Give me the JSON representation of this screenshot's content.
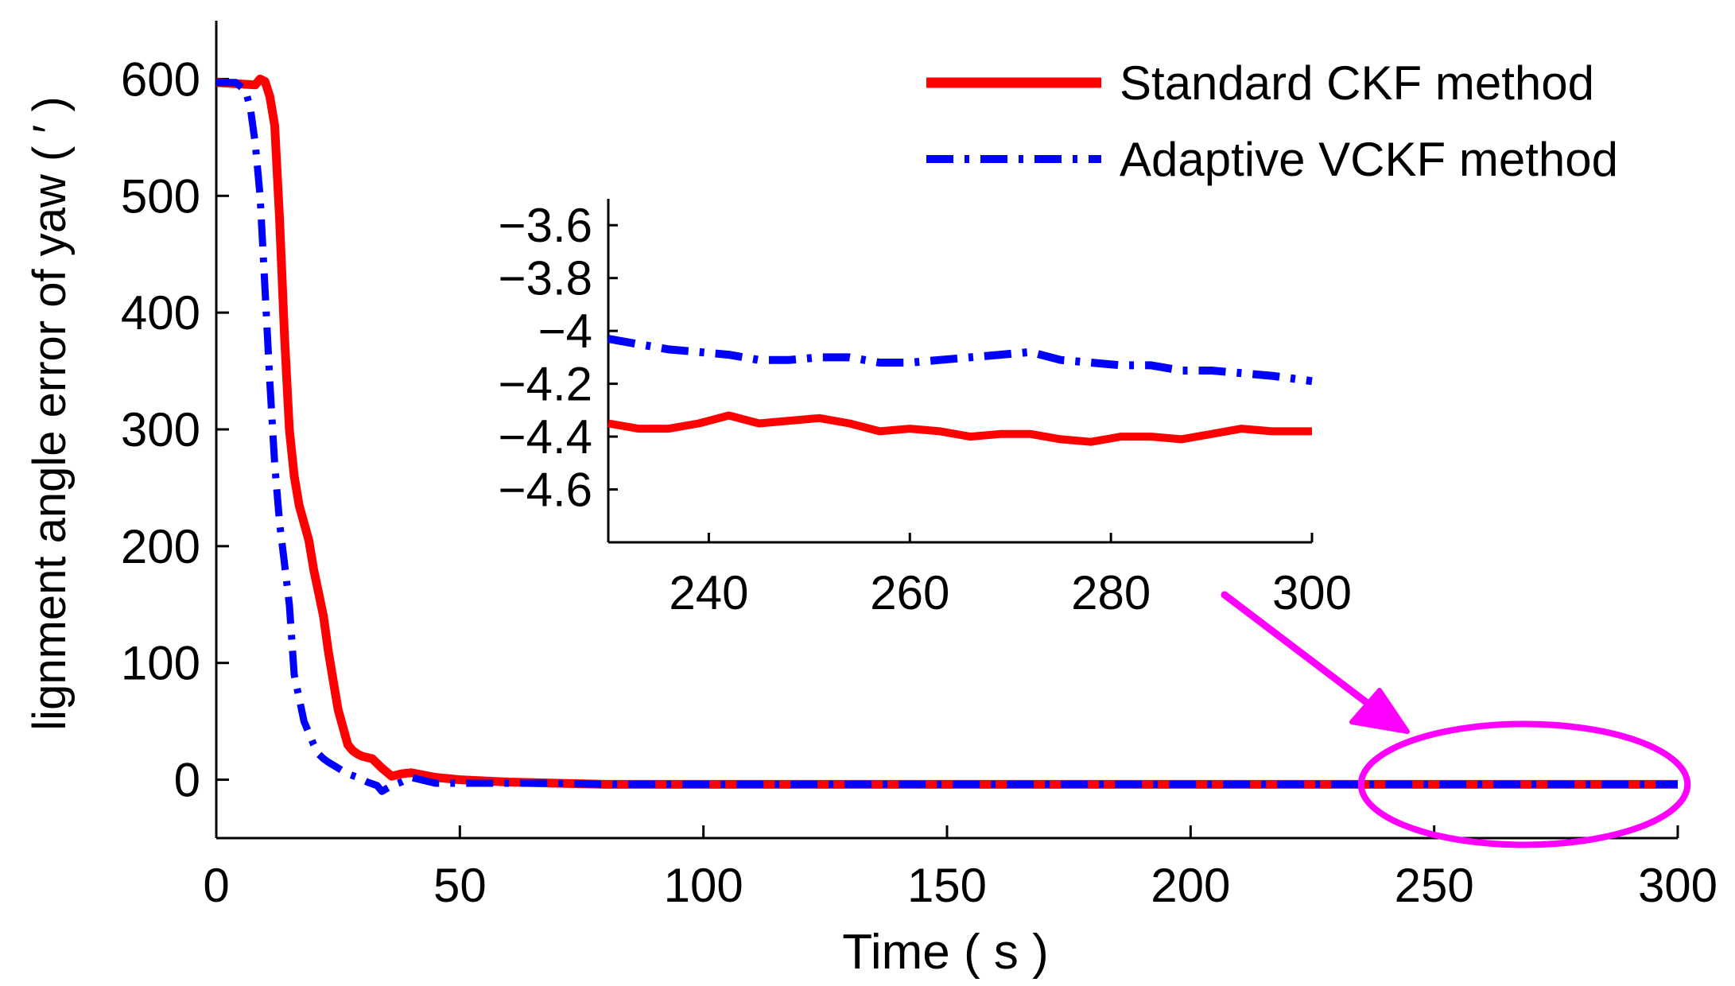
{
  "chart_data": {
    "type": "line",
    "title": "",
    "xlabel": "Time ( s )",
    "ylabel": "lignment angle error of yaw ( ′ )",
    "xlim": [
      0,
      300
    ],
    "ylim": [
      -50,
      650
    ],
    "xticks": [
      "0",
      "50",
      "100",
      "150",
      "200",
      "250",
      "300"
    ],
    "yticks": [
      "0",
      "100",
      "200",
      "300",
      "400",
      "500",
      "600"
    ],
    "legend_position": "top-right",
    "series": [
      {
        "name": "Standard CKF method",
        "color": "#ff0000",
        "style": "solid",
        "x": [
          0,
          4,
          8,
          9,
          10,
          11,
          12,
          13,
          14,
          15,
          16,
          17,
          18,
          19,
          20,
          21,
          22,
          23,
          24,
          25,
          26,
          27,
          28,
          29,
          30,
          32,
          34,
          36,
          38,
          40,
          45,
          50,
          60,
          70,
          80,
          100,
          150,
          200,
          230,
          260,
          300
        ],
        "y": [
          597,
          596,
          595,
          600,
          598,
          585,
          560,
          480,
          380,
          300,
          260,
          235,
          220,
          205,
          180,
          160,
          140,
          110,
          85,
          60,
          45,
          30,
          25,
          22,
          20,
          18,
          10,
          3,
          5,
          6,
          2,
          0,
          -2,
          -3,
          -4,
          -4,
          -4,
          -4,
          -4,
          -4,
          -4
        ]
      },
      {
        "name": "Adaptive VCKF method",
        "color": "#0000ff",
        "style": "dashdot",
        "x": [
          0,
          4,
          6,
          7,
          8,
          9,
          10,
          11,
          12,
          13,
          14,
          15,
          16,
          17,
          18,
          19,
          20,
          21,
          22,
          23,
          25,
          27,
          29,
          31,
          33,
          34,
          36,
          38,
          40,
          45,
          50,
          60,
          70,
          80,
          100,
          150,
          200,
          230,
          260,
          300
        ],
        "y": [
          597,
          597,
          590,
          575,
          545,
          500,
          420,
          340,
          270,
          220,
          185,
          150,
          90,
          70,
          50,
          40,
          30,
          22,
          18,
          15,
          10,
          5,
          2,
          -2,
          -5,
          -10,
          -5,
          -2,
          2,
          -3,
          -3,
          -3,
          -3,
          -4,
          -4,
          -4,
          -4,
          -4,
          -4,
          -4
        ]
      }
    ],
    "annotations": [
      "magenta ellipse around t = 235–300 s near 0",
      "magenta arrow pointing from inset to ellipse"
    ],
    "inset": {
      "xlim": [
        230,
        300
      ],
      "ylim": [
        -4.8,
        -3.5
      ],
      "xticks": [
        "240",
        "260",
        "280",
        "300"
      ],
      "yticks": [
        "−3.6",
        "−3.8",
        "−4",
        "−4.2",
        "−4.4",
        "−4.6"
      ],
      "series": [
        {
          "name": "Standard CKF method",
          "color": "#ff0000",
          "style": "solid",
          "x": [
            230,
            233,
            236,
            239,
            242,
            245,
            248,
            251,
            254,
            257,
            260,
            263,
            266,
            269,
            272,
            275,
            278,
            281,
            284,
            287,
            290,
            293,
            296,
            300
          ],
          "y": [
            -4.35,
            -4.37,
            -4.37,
            -4.35,
            -4.32,
            -4.35,
            -4.34,
            -4.33,
            -4.35,
            -4.38,
            -4.37,
            -4.38,
            -4.4,
            -4.39,
            -4.39,
            -4.41,
            -4.42,
            -4.4,
            -4.4,
            -4.41,
            -4.39,
            -4.37,
            -4.38,
            -4.38
          ]
        },
        {
          "name": "Adaptive VCKF method",
          "color": "#0000ff",
          "style": "dashdot",
          "x": [
            230,
            233,
            236,
            239,
            242,
            245,
            248,
            251,
            254,
            257,
            260,
            263,
            266,
            269,
            272,
            275,
            278,
            281,
            284,
            287,
            290,
            293,
            296,
            300
          ],
          "y": [
            -4.03,
            -4.05,
            -4.07,
            -4.08,
            -4.09,
            -4.11,
            -4.11,
            -4.1,
            -4.1,
            -4.12,
            -4.12,
            -4.11,
            -4.1,
            -4.09,
            -4.08,
            -4.11,
            -4.12,
            -4.13,
            -4.13,
            -4.15,
            -4.15,
            -4.16,
            -4.17,
            -4.19
          ]
        }
      ]
    }
  }
}
